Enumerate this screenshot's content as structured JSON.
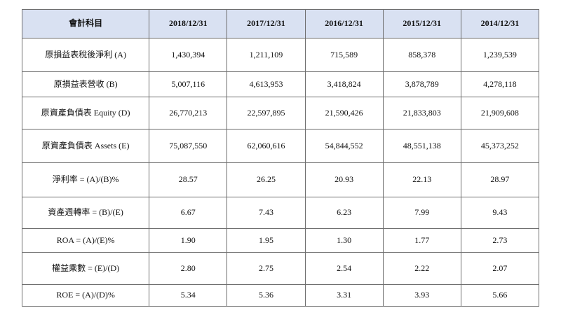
{
  "table": {
    "headers": [
      "會計科目",
      "2018/12/31",
      "2017/12/31",
      "2016/12/31",
      "2015/12/31",
      "2014/12/31"
    ],
    "rows": [
      [
        "原損益表稅後淨利 (A)",
        "1,430,394",
        "1,211,109",
        "715,589",
        "858,378",
        "1,239,539"
      ],
      [
        "原損益表營收 (B)",
        "5,007,116",
        "4,613,953",
        "3,418,824",
        "3,878,789",
        "4,278,118"
      ],
      [
        "原資產負債表 Equity (D)",
        "26,770,213",
        "22,597,895",
        "21,590,426",
        "21,833,803",
        "21,909,608"
      ],
      [
        "原資產負債表 Assets (E)",
        "75,087,550",
        "62,060,616",
        "54,844,552",
        "48,551,138",
        "45,373,252"
      ],
      [
        "淨利率 = (A)/(B)%",
        "28.57",
        "26.25",
        "20.93",
        "22.13",
        "28.97"
      ],
      [
        "資產週轉率 = (B)/(E)",
        "6.67",
        "7.43",
        "6.23",
        "7.99",
        "9.43"
      ],
      [
        "ROA = (A)/(E)%",
        "1.90",
        "1.95",
        "1.30",
        "1.77",
        "2.73"
      ],
      [
        "權益乘數 = (E)/(D)",
        "2.80",
        "2.75",
        "2.54",
        "2.22",
        "2.07"
      ],
      [
        "ROE = (A)/(D)%",
        "5.34",
        "5.36",
        "3.31",
        "3.93",
        "5.66"
      ]
    ]
  },
  "colors": {
    "header_background": "#d9e1f2",
    "border": "#6e6e6e"
  }
}
